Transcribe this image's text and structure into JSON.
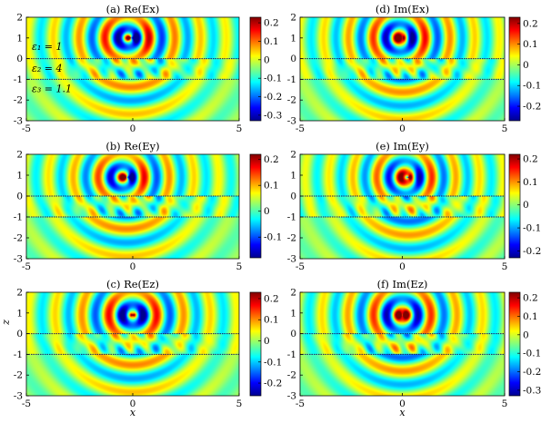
{
  "figure": {
    "xlabel": "x",
    "zlabel": "z",
    "layer_labels": [
      "ε₁ = 1",
      "ε₂ = 4",
      "ε₃ = 1.1"
    ]
  },
  "colormap": [
    "#00008f",
    "#0000ff",
    "#0080ff",
    "#00ffff",
    "#80ff80",
    "#ffff00",
    "#ff8000",
    "#ff0000",
    "#800000"
  ],
  "chart_data": [
    {
      "type": "heatmap",
      "title": "(a) Re(Ex)",
      "xlim": [
        -5,
        5
      ],
      "ylim": [
        -3,
        2
      ],
      "x_ticks": [
        -5,
        0,
        5
      ],
      "y_ticks": [
        2,
        1,
        0,
        -1,
        -2,
        -3
      ],
      "interfaces": [
        0,
        -1
      ],
      "clim": [
        -0.33,
        0.23
      ],
      "colorbar_ticks": [
        0.2,
        0.1,
        0,
        -0.1,
        -0.2,
        -0.3
      ],
      "show_xlabel": false
    },
    {
      "type": "heatmap",
      "title": "(d) Im(Ex)",
      "xlim": [
        -5,
        5
      ],
      "ylim": [
        -3,
        2
      ],
      "x_ticks": [
        -5,
        0,
        5
      ],
      "y_ticks": [
        2,
        1,
        0,
        -1,
        -2,
        -3
      ],
      "interfaces": [
        0,
        -1
      ],
      "clim": [
        -0.27,
        0.23
      ],
      "colorbar_ticks": [
        0.2,
        0.1,
        0,
        -0.1,
        -0.2
      ],
      "show_xlabel": false
    },
    {
      "type": "heatmap",
      "title": "(b) Re(Ey)",
      "xlim": [
        -5,
        5
      ],
      "ylim": [
        -3,
        2
      ],
      "x_ticks": [
        -5,
        0,
        5
      ],
      "y_ticks": [
        2,
        1,
        0,
        -1,
        -2,
        -3
      ],
      "interfaces": [
        0,
        -1
      ],
      "clim": [
        -0.18,
        0.22
      ],
      "colorbar_ticks": [
        0.2,
        0.1,
        0,
        -0.1
      ],
      "show_xlabel": false
    },
    {
      "type": "heatmap",
      "title": "(e) Im(Ey)",
      "xlim": [
        -5,
        5
      ],
      "ylim": [
        -3,
        2
      ],
      "x_ticks": [
        -5,
        0,
        5
      ],
      "y_ticks": [
        2,
        1,
        0,
        -1,
        -2,
        -3
      ],
      "interfaces": [
        0,
        -1
      ],
      "clim": [
        -0.23,
        0.22
      ],
      "colorbar_ticks": [
        0.2,
        0.1,
        0,
        -0.1,
        -0.2
      ],
      "show_xlabel": false
    },
    {
      "type": "heatmap",
      "title": "(c) Re(Ez)",
      "xlim": [
        -5,
        5
      ],
      "ylim": [
        -3,
        2
      ],
      "x_ticks": [
        -5,
        0,
        5
      ],
      "y_ticks": [
        2,
        1,
        0,
        -1,
        -2,
        -3
      ],
      "interfaces": [
        0,
        -1
      ],
      "clim": [
        -0.26,
        0.23
      ],
      "colorbar_ticks": [
        0.2,
        0.1,
        0,
        -0.1,
        -0.2
      ],
      "show_xlabel": true
    },
    {
      "type": "heatmap",
      "title": "(f) Im(Ez)",
      "xlim": [
        -5,
        5
      ],
      "ylim": [
        -3,
        2
      ],
      "x_ticks": [
        -5,
        0,
        5
      ],
      "y_ticks": [
        2,
        1,
        0,
        -1,
        -2,
        -3
      ],
      "interfaces": [
        0,
        -1
      ],
      "clim": [
        -0.33,
        0.23
      ],
      "colorbar_ticks": [
        0.2,
        0.1,
        0,
        -0.1,
        -0.2,
        -0.3
      ],
      "show_xlabel": true
    }
  ]
}
